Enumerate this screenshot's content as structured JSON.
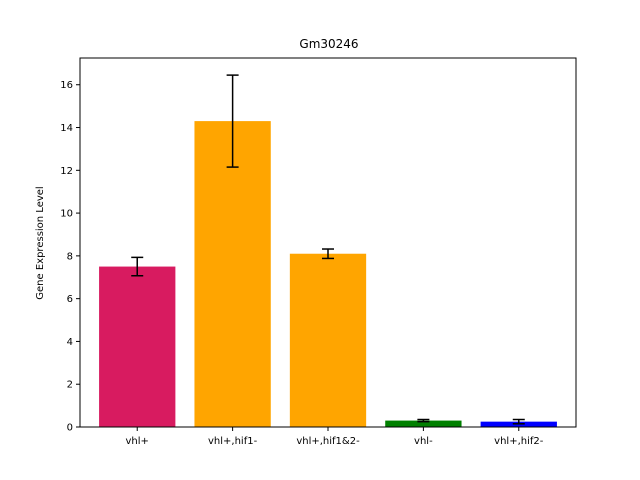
{
  "chart_data": {
    "type": "bar",
    "title": "Gm30246",
    "xlabel": "",
    "ylabel": "Gene Expression Level",
    "ylim": [
      0,
      17.25
    ],
    "yticks": [
      0,
      2,
      4,
      6,
      8,
      10,
      12,
      14,
      16
    ],
    "grid": false,
    "legend": "none",
    "categories": [
      "vhl+",
      "vhl+,hif1-",
      "vhl+,hif1&2-",
      "vhl-",
      "vhl+,hif2-"
    ],
    "values": [
      7.5,
      14.3,
      8.1,
      0.3,
      0.25
    ],
    "errors": [
      0.43,
      2.15,
      0.22,
      0.05,
      0.1
    ],
    "colors": [
      "#d81b60",
      "#ffa500",
      "#ffa500",
      "#008000",
      "#0000ff"
    ]
  }
}
